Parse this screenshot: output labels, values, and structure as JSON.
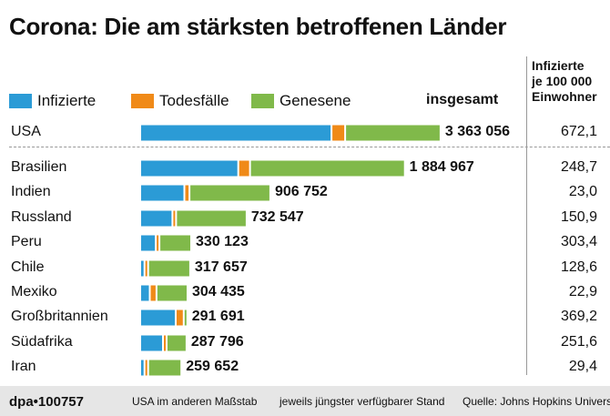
{
  "title": "Corona: Die am stärksten betroffenen Länder",
  "legend": {
    "items": [
      {
        "label": "Infizierte",
        "color": "#2b9bd6"
      },
      {
        "label": "Todesfälle",
        "color": "#f08a18"
      },
      {
        "label": "Genesene",
        "color": "#80b94a"
      }
    ],
    "total_header": "insgesamt"
  },
  "column_header": {
    "line1": "Infizierte",
    "line2": "je 100 000",
    "line3": "Einwohner"
  },
  "footer": {
    "brand": "dpa•100757",
    "note1": "USA im anderen Maßstab",
    "note2": "jeweils jüngster verfügbarer Stand",
    "source": "Quelle: Johns Hopkins University"
  },
  "chart_data": {
    "type": "bar",
    "orientation": "horizontal",
    "stacked": true,
    "title": "Corona: Die am stärksten betroffenen Länder",
    "categories": [
      "USA",
      "Brasilien",
      "Indien",
      "Russland",
      "Peru",
      "Chile",
      "Mexiko",
      "Großbritannien",
      "Südafrika",
      "Iran"
    ],
    "totals_label": [
      "3 363 056",
      "1 884 967",
      "906 752",
      "732 547",
      "330 123",
      "317 657",
      "304 435",
      "291 691",
      "287 796",
      "259 652"
    ],
    "totals": [
      3363056,
      1884967,
      906752,
      732547,
      330123,
      317657,
      304435,
      291691,
      287796,
      259652
    ],
    "series": [
      {
        "name": "Infizierte",
        "color": "#2b9bd6",
        "values": [
          2161000,
          700000,
          308000,
          221000,
          100000,
          18000,
          56000,
          245000,
          152000,
          18000
        ]
      },
      {
        "name": "Todesfälle",
        "color": "#f08a18",
        "values": [
          135000,
          72000,
          24000,
          11500,
          12000,
          7000,
          36000,
          45000,
          4000,
          13000
        ]
      },
      {
        "name": "Genesene",
        "color": "#80b94a",
        "values": [
          1067000,
          1113000,
          575000,
          500000,
          218000,
          292700,
          212400,
          1700,
          131800,
          228700
        ]
      }
    ],
    "per_100000_header": "Infizierte je 100 000 Einwohner",
    "per_100000": [
      "672,1",
      "248,7",
      "23,0",
      "150,9",
      "303,4",
      "128,6",
      "22,9",
      "369,2",
      "251,6",
      "29,4"
    ],
    "note": "USA im anderen Maßstab"
  }
}
